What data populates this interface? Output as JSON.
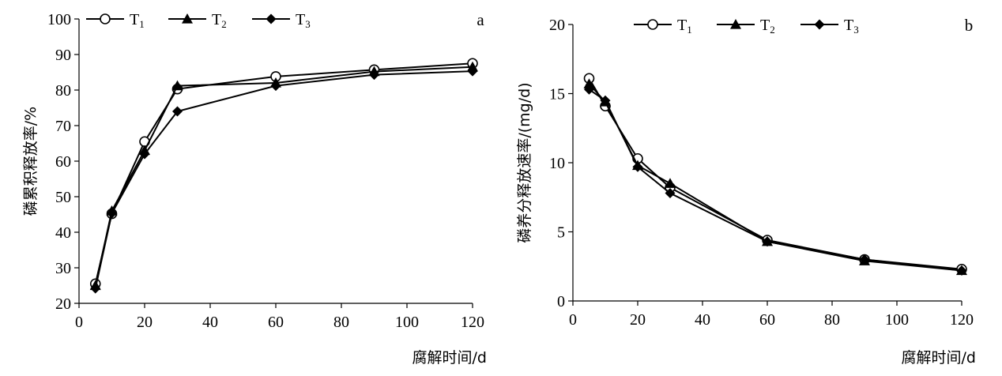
{
  "chart_data": [
    {
      "type": "line",
      "panel_label": "a",
      "xlabel": "腐解时间/d",
      "ylabel": "磷累积释放率/%",
      "xlim": [
        0,
        120
      ],
      "ylim": [
        20,
        100
      ],
      "xticks": [
        0,
        20,
        40,
        60,
        80,
        100,
        120
      ],
      "yticks": [
        20,
        30,
        40,
        50,
        60,
        70,
        80,
        90,
        100
      ],
      "legend_position": "top",
      "x": [
        5,
        10,
        20,
        30,
        60,
        90,
        120
      ],
      "series": [
        {
          "name": "T",
          "subscript": "1",
          "marker": "circle-open",
          "values": [
            25.5,
            45.2,
            65.5,
            80.3,
            83.8,
            85.7,
            87.5
          ]
        },
        {
          "name": "T",
          "subscript": "2",
          "marker": "triangle",
          "values": [
            25.0,
            46.0,
            63.0,
            81.2,
            82.0,
            85.2,
            86.5
          ]
        },
        {
          "name": "T",
          "subscript": "3",
          "marker": "diamond",
          "values": [
            24.2,
            45.3,
            62.0,
            74.0,
            81.2,
            84.3,
            85.3
          ]
        }
      ]
    },
    {
      "type": "line",
      "panel_label": "b",
      "xlabel": "腐解时间/d",
      "ylabel": "磷养分释放速率/(mg/d)",
      "xlim": [
        0,
        120
      ],
      "ylim": [
        0,
        20
      ],
      "xticks": [
        0,
        20,
        40,
        60,
        80,
        100,
        120
      ],
      "yticks": [
        0,
        5,
        10,
        15,
        20
      ],
      "legend_position": "top",
      "x": [
        5,
        10,
        20,
        30,
        60,
        90,
        120
      ],
      "series": [
        {
          "name": "T",
          "subscript": "1",
          "marker": "circle-open",
          "values": [
            16.1,
            14.1,
            10.3,
            8.2,
            4.4,
            3.0,
            2.3
          ]
        },
        {
          "name": "T",
          "subscript": "2",
          "marker": "triangle",
          "values": [
            15.7,
            14.4,
            9.8,
            8.5,
            4.3,
            2.9,
            2.2
          ]
        },
        {
          "name": "T",
          "subscript": "3",
          "marker": "diamond",
          "values": [
            15.3,
            14.5,
            9.7,
            7.8,
            4.3,
            3.0,
            2.2
          ]
        }
      ]
    }
  ]
}
